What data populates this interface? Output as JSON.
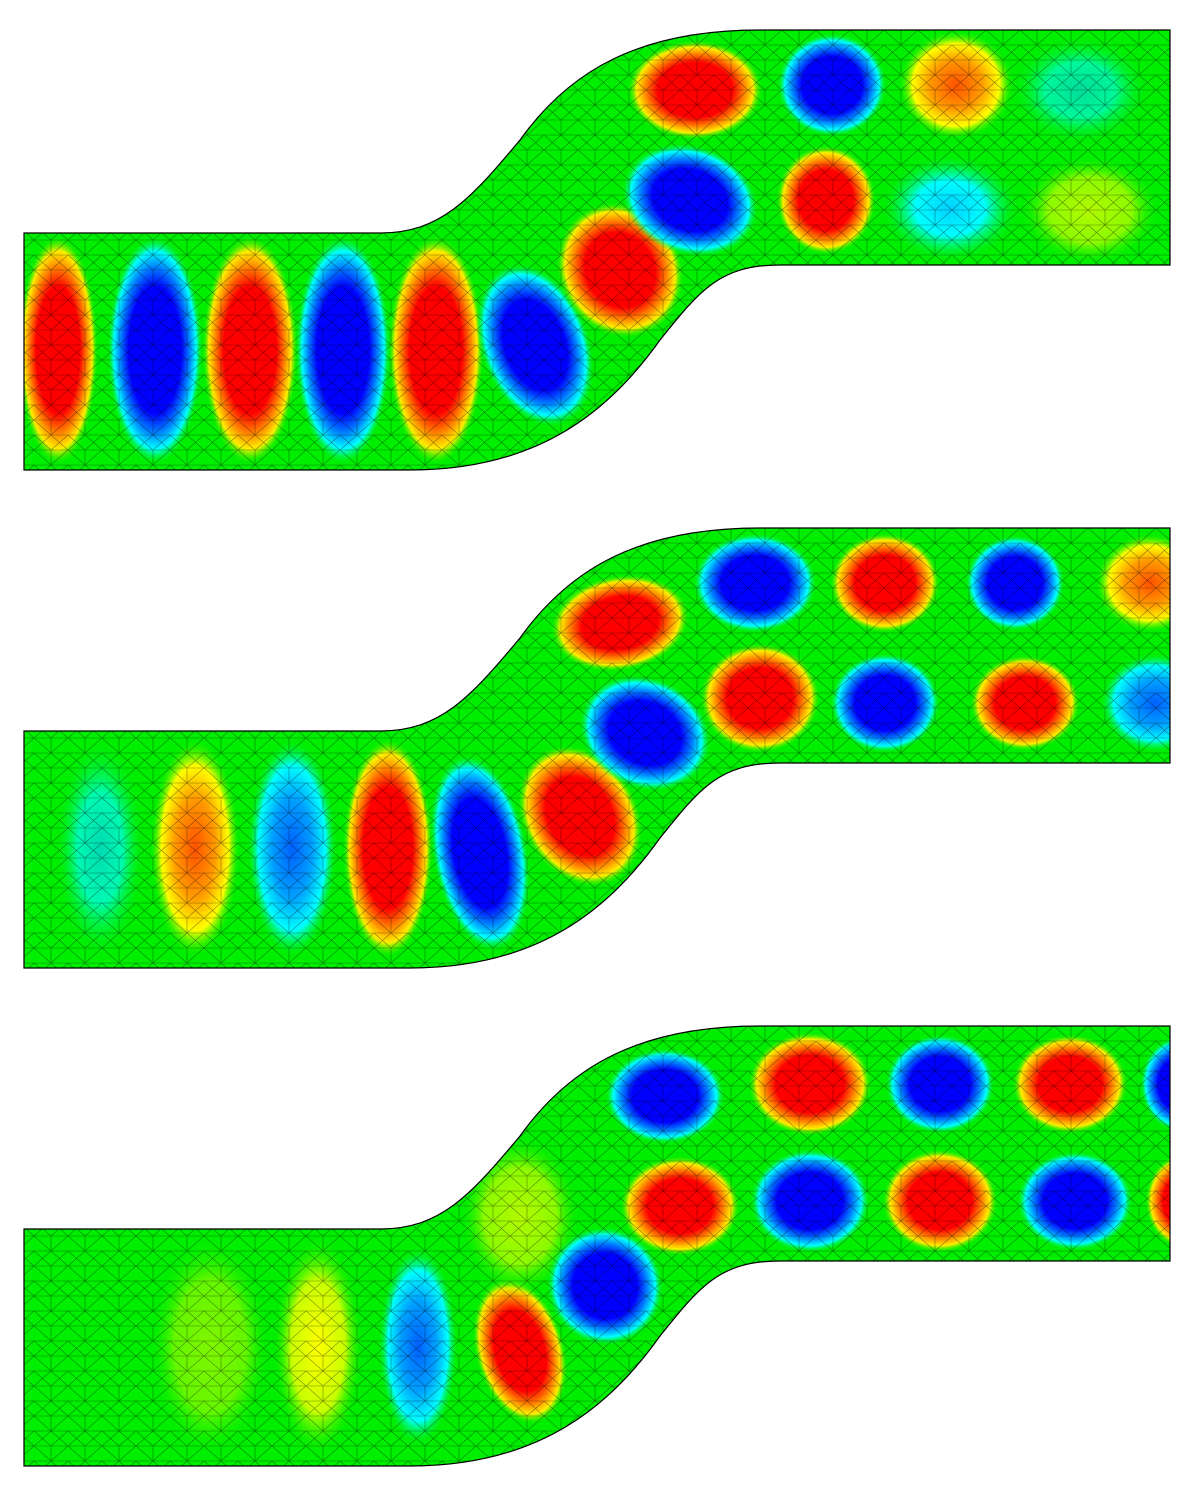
{
  "figure": {
    "kind": "simulation-snapshots",
    "panel_count": 3,
    "colormap": [
      "#0000ff",
      "#00ffff",
      "#00ff00",
      "#ffff00",
      "#ff0000"
    ],
    "background": "#00ee00",
    "mesh_color": "#000000",
    "panels": [
      {
        "name": "panel-1",
        "description": ""
      },
      {
        "name": "panel-2",
        "description": ""
      },
      {
        "name": "panel-3",
        "description": ""
      }
    ]
  }
}
